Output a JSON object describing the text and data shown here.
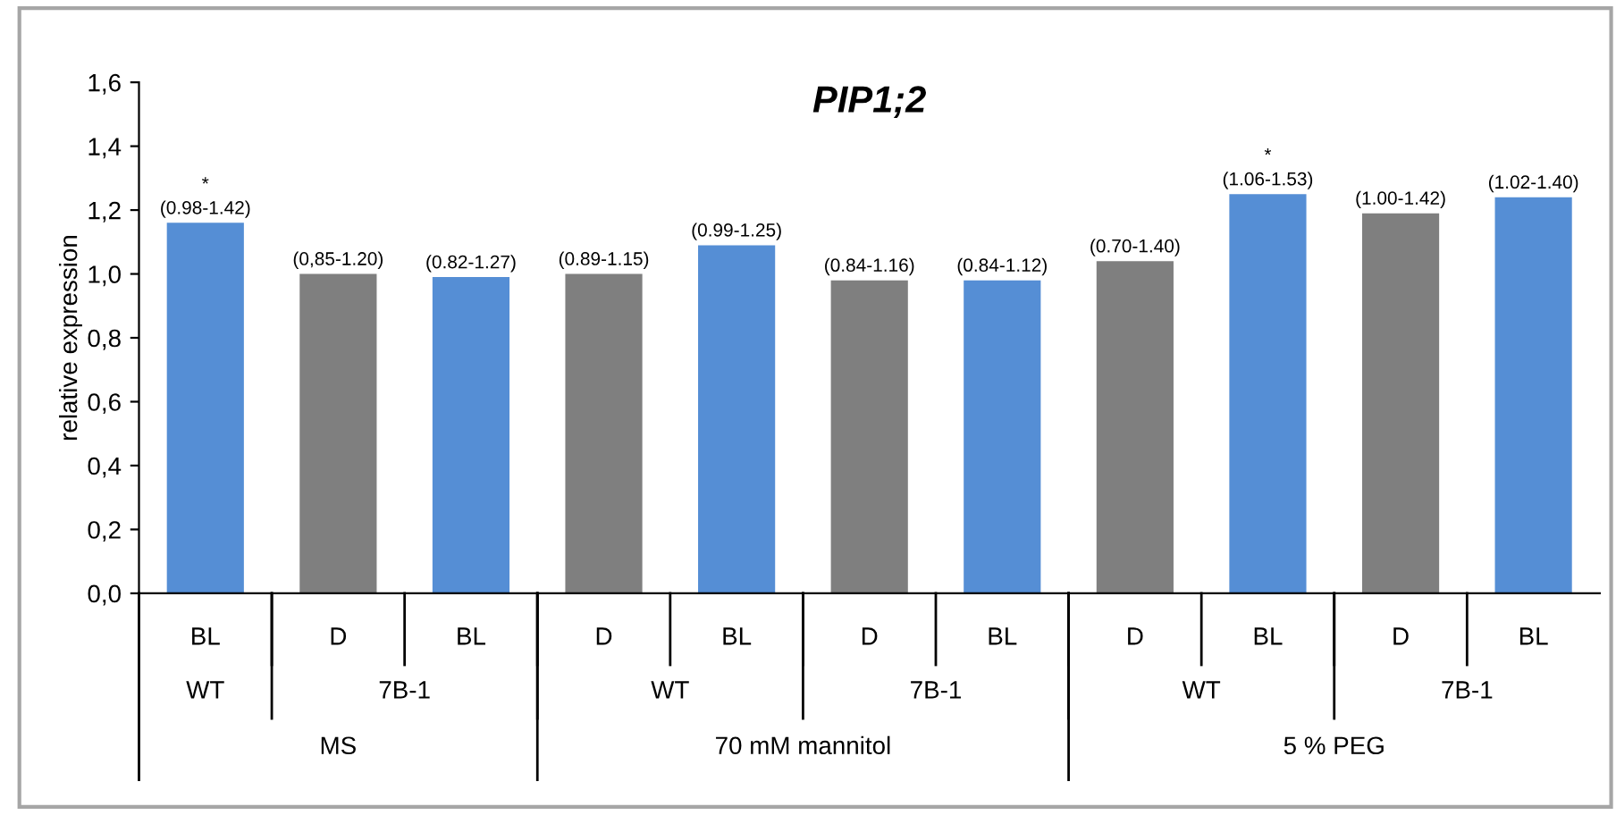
{
  "chart_data": {
    "type": "bar",
    "title": "PIP1;2",
    "ylabel": "relative expression",
    "categories": [
      "BL",
      "D",
      "BL",
      "D",
      "BL",
      "D",
      "BL",
      "D",
      "BL",
      "D",
      "BL"
    ],
    "values": [
      1.16,
      1.0,
      0.99,
      1.0,
      1.09,
      0.98,
      0.98,
      1.04,
      1.25,
      1.19,
      1.24
    ],
    "colors": [
      "#558ed5",
      "#7f7f7f",
      "#558ed5",
      "#7f7f7f",
      "#558ed5",
      "#7f7f7f",
      "#558ed5",
      "#7f7f7f",
      "#558ed5",
      "#7f7f7f",
      "#558ed5"
    ],
    "value_labels": [
      "*\n(0.98-1.42)",
      "(0,85-1.20)",
      "(0.82-1.27)",
      "(0.89-1.15)",
      "(0.99-1.25)",
      "(0.84-1.16)",
      "(0.84-1.12)",
      "(0.70-1.40)",
      "*\n(1.06-1.53)",
      "(1.00-1.42)",
      "(1.02-1.40)"
    ],
    "annotations": [
      "WT",
      "7B-1",
      "WT",
      "7B-1",
      "WT",
      "7B-1",
      "MS",
      "70 mM mannitol",
      "5 % PEG"
    ],
    "ylim": [
      0,
      1.6
    ],
    "yticks": [
      {
        "value": 0,
        "label": "0,0"
      },
      {
        "value": 0.2,
        "label": "0,2"
      },
      {
        "value": 0.4,
        "label": "0,4"
      },
      {
        "value": 0.6,
        "label": "0,6"
      },
      {
        "value": 0.8,
        "label": "0,8"
      },
      {
        "value": 1.0,
        "label": "1,0"
      },
      {
        "value": 1.2,
        "label": "1,2"
      },
      {
        "value": 1.4,
        "label": "1,4"
      },
      {
        "value": 1.6,
        "label": "1,6"
      }
    ],
    "grid": false,
    "legend": false
  }
}
